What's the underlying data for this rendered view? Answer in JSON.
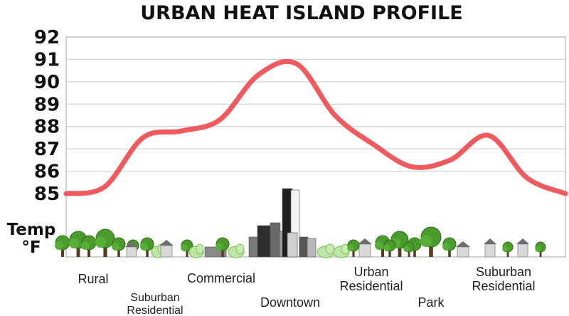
{
  "chart_data": {
    "type": "line",
    "title": "URBAN HEAT ISLAND PROFILE",
    "ylabel": "Temp °F",
    "ylabel_lines": [
      "Temp",
      "°F"
    ],
    "ylim": [
      85,
      92
    ],
    "yticks": [
      "85",
      "86",
      "87",
      "88",
      "89",
      "90",
      "91",
      "92"
    ],
    "grid": true,
    "categories": [
      "Rural",
      "Suburban Residential",
      "Commercial",
      "Downtown",
      "Urban Residential",
      "Park",
      "Suburban Residential"
    ],
    "category_labels": [
      [
        "Rural"
      ],
      [
        "Suburban",
        "Residential"
      ],
      [
        "Commercial"
      ],
      [
        "Downtown"
      ],
      [
        "Urban",
        "Residential"
      ],
      [
        "Park"
      ],
      [
        "Suburban",
        "Residential"
      ]
    ],
    "x": [
      0,
      0.5,
      1,
      1.5,
      2,
      2.5,
      3,
      3.5,
      4,
      4.5,
      5,
      5.5,
      6,
      6.5
    ],
    "values": [
      85.0,
      85.3,
      87.5,
      87.8,
      88.3,
      90.3,
      90.8,
      88.5,
      87.2,
      86.2,
      86.5,
      87.6,
      85.7,
      85.0
    ],
    "series_color": "#ef5a5f"
  },
  "scenery": {
    "icons": [
      "tree-icon",
      "house-icon",
      "bush-icon",
      "building-icon"
    ]
  }
}
